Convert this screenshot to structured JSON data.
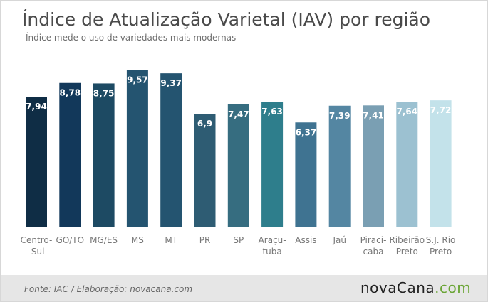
{
  "title": "Índice de Atualização Varietal (IAV) por região",
  "subtitle": "Índice mede o uso de variedades mais modernas",
  "source": "Fonte: IAC / Elaboração: novacana.com",
  "logo": {
    "part1": "nova",
    "part2": "Cana",
    "part3": ".com"
  },
  "chart_data": {
    "type": "bar",
    "title": "Índice de Atualização Varietal (IAV) por região",
    "subtitle": "Índice mede o uso de variedades mais modernas",
    "categories": [
      "Centro-\n-Sul",
      "GO/TO",
      "MG/ES",
      "MS",
      "MT",
      "PR",
      "SP",
      "Araçu-\ntuba",
      "Assis",
      "Jaú",
      "Piraci-\ncaba",
      "Ribeirão\nPreto",
      "S.J. Rio\nPreto"
    ],
    "values": [
      7.94,
      8.78,
      8.75,
      9.57,
      9.37,
      6.9,
      7.47,
      7.63,
      6.37,
      7.39,
      7.41,
      7.64,
      7.72
    ],
    "value_labels": [
      "7,94",
      "8,78",
      "8,75",
      "9,57",
      "9,37",
      "6,9",
      "7,47",
      "7,63",
      "6,37",
      "7,39",
      "7,41",
      "7,64",
      "7,72"
    ],
    "colors": [
      "#0f2d45",
      "#12385a",
      "#1d4a63",
      "#245470",
      "#245470",
      "#2e5c73",
      "#366d80",
      "#2e7e8c",
      "#3f7391",
      "#5486a2",
      "#7a9fb3",
      "#9cc1d1",
      "#c3e2ea"
    ],
    "ylim": [
      0,
      11.2
    ],
    "grid": false,
    "legend": "none"
  }
}
